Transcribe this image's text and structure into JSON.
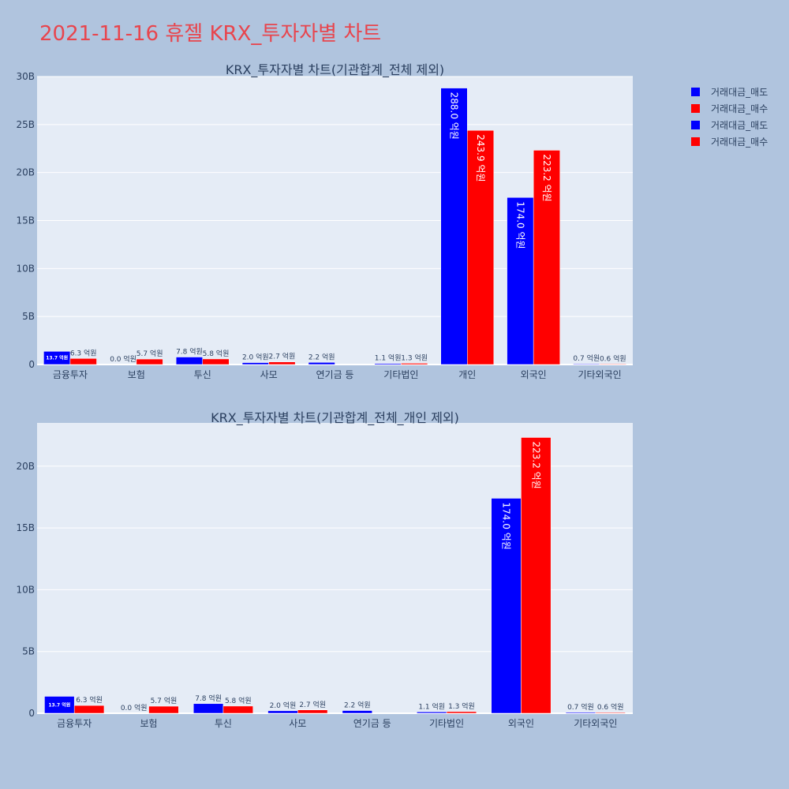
{
  "title": "2021-11-16 휴젤 KRX_투자자별 차트",
  "legend": [
    {
      "name": "거래대금_매도",
      "color": "#0000ff"
    },
    {
      "name": "거래대금_매수",
      "color": "#ff0000"
    },
    {
      "name": "거래대금_매도",
      "color": "#0000ff"
    },
    {
      "name": "거래대금_매수",
      "color": "#ff0000"
    }
  ],
  "colors": {
    "sell": "#0000ff",
    "buy": "#ff0000",
    "plot_bg": "#e5ecf6",
    "page_bg": "#b0c4de",
    "title": "#e8454d",
    "text": "#2a3f5f"
  },
  "chart_data": [
    {
      "type": "bar",
      "title": "KRX_투자자별 차트(기관합계_전체 제외)",
      "categories": [
        "금융투자",
        "보험",
        "투신",
        "사모",
        "연기금 등",
        "기타법인",
        "개인",
        "외국인",
        "기타외국인"
      ],
      "ylim": [
        0,
        30000000000
      ],
      "yticks": [
        0,
        5000000000,
        10000000000,
        15000000000,
        20000000000,
        25000000000,
        30000000000
      ],
      "ytick_labels": [
        "0",
        "5B",
        "10B",
        "15B",
        "20B",
        "25B",
        "30B"
      ],
      "grid": true,
      "series": [
        {
          "name": "거래대금_매도",
          "color": "#0000ff",
          "values": [
            1370000000,
            0,
            780000000,
            200000000,
            220000000,
            110000000,
            28800000000,
            17400000000,
            70000000
          ],
          "labels": [
            "13.7 억원",
            "0.0 억원",
            "7.8 억원",
            "2.0 억원",
            "2.2 억원",
            "1.1 억원",
            "288.0 억원",
            "174.0 억원",
            "0.7 억원"
          ]
        },
        {
          "name": "거래대금_매수",
          "color": "#ff0000",
          "values": [
            630000000,
            570000000,
            580000000,
            270000000,
            0,
            130000000,
            24390000000,
            22320000000,
            60000000
          ],
          "labels": [
            "6.3 억원",
            "5.7 억원",
            "5.8 억원",
            "2.7 억원",
            "",
            "1.3 억원",
            "243.9 억원",
            "223.2 억원",
            "0.6 억원"
          ]
        }
      ]
    },
    {
      "type": "bar",
      "title": "KRX_투자자별 차트(기관합계_전체_개인 제외)",
      "categories": [
        "금융투자",
        "보험",
        "투신",
        "사모",
        "연기금 등",
        "기타법인",
        "외국인",
        "기타외국인"
      ],
      "ylim": [
        0,
        23500000000
      ],
      "yticks": [
        0,
        5000000000,
        10000000000,
        15000000000,
        20000000000
      ],
      "ytick_labels": [
        "0",
        "5B",
        "10B",
        "15B",
        "20B"
      ],
      "grid": true,
      "series": [
        {
          "name": "거래대금_매도",
          "color": "#0000ff",
          "values": [
            1370000000,
            0,
            780000000,
            200000000,
            220000000,
            110000000,
            17400000000,
            70000000
          ],
          "labels": [
            "13.7 억원",
            "0.0 억원",
            "7.8 억원",
            "2.0 억원",
            "2.2 억원",
            "1.1 억원",
            "174.0 억원",
            "0.7 억원"
          ]
        },
        {
          "name": "거래대금_매수",
          "color": "#ff0000",
          "values": [
            630000000,
            570000000,
            580000000,
            270000000,
            0,
            130000000,
            22320000000,
            60000000
          ],
          "labels": [
            "6.3 억원",
            "5.7 억원",
            "5.8 억원",
            "2.7 억원",
            "",
            "1.3 억원",
            "223.2 억원",
            "0.6 억원"
          ]
        }
      ]
    }
  ]
}
